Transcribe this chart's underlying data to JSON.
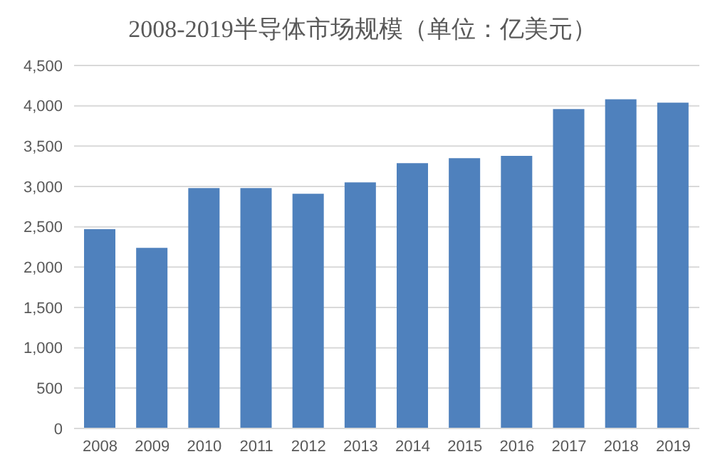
{
  "chart_data": {
    "type": "bar",
    "title": "2008-2019半导体市场规模（单位：亿美元）",
    "categories": [
      "2008",
      "2009",
      "2010",
      "2011",
      "2012",
      "2013",
      "2014",
      "2015",
      "2016",
      "2017",
      "2018",
      "2019"
    ],
    "values": [
      2470,
      2240,
      2980,
      2980,
      2910,
      3050,
      3290,
      3350,
      3380,
      3960,
      4080,
      4040
    ],
    "color": "#4f81bd",
    "ylim": [
      0,
      4500
    ],
    "yticks": [
      0,
      500,
      {
        "value": 1000,
        "label": "1,000"
      },
      {
        "value": 1500,
        "label": "1,500"
      },
      {
        "value": 2000,
        "label": "2,000"
      },
      {
        "value": 2500,
        "label": "2,500"
      },
      {
        "value": 3000,
        "label": "3,000"
      },
      {
        "value": 3500,
        "label": "3,500"
      },
      {
        "value": 4000,
        "label": "4,000"
      },
      {
        "value": 4500,
        "label": "4,500"
      }
    ],
    "grid": "y"
  }
}
